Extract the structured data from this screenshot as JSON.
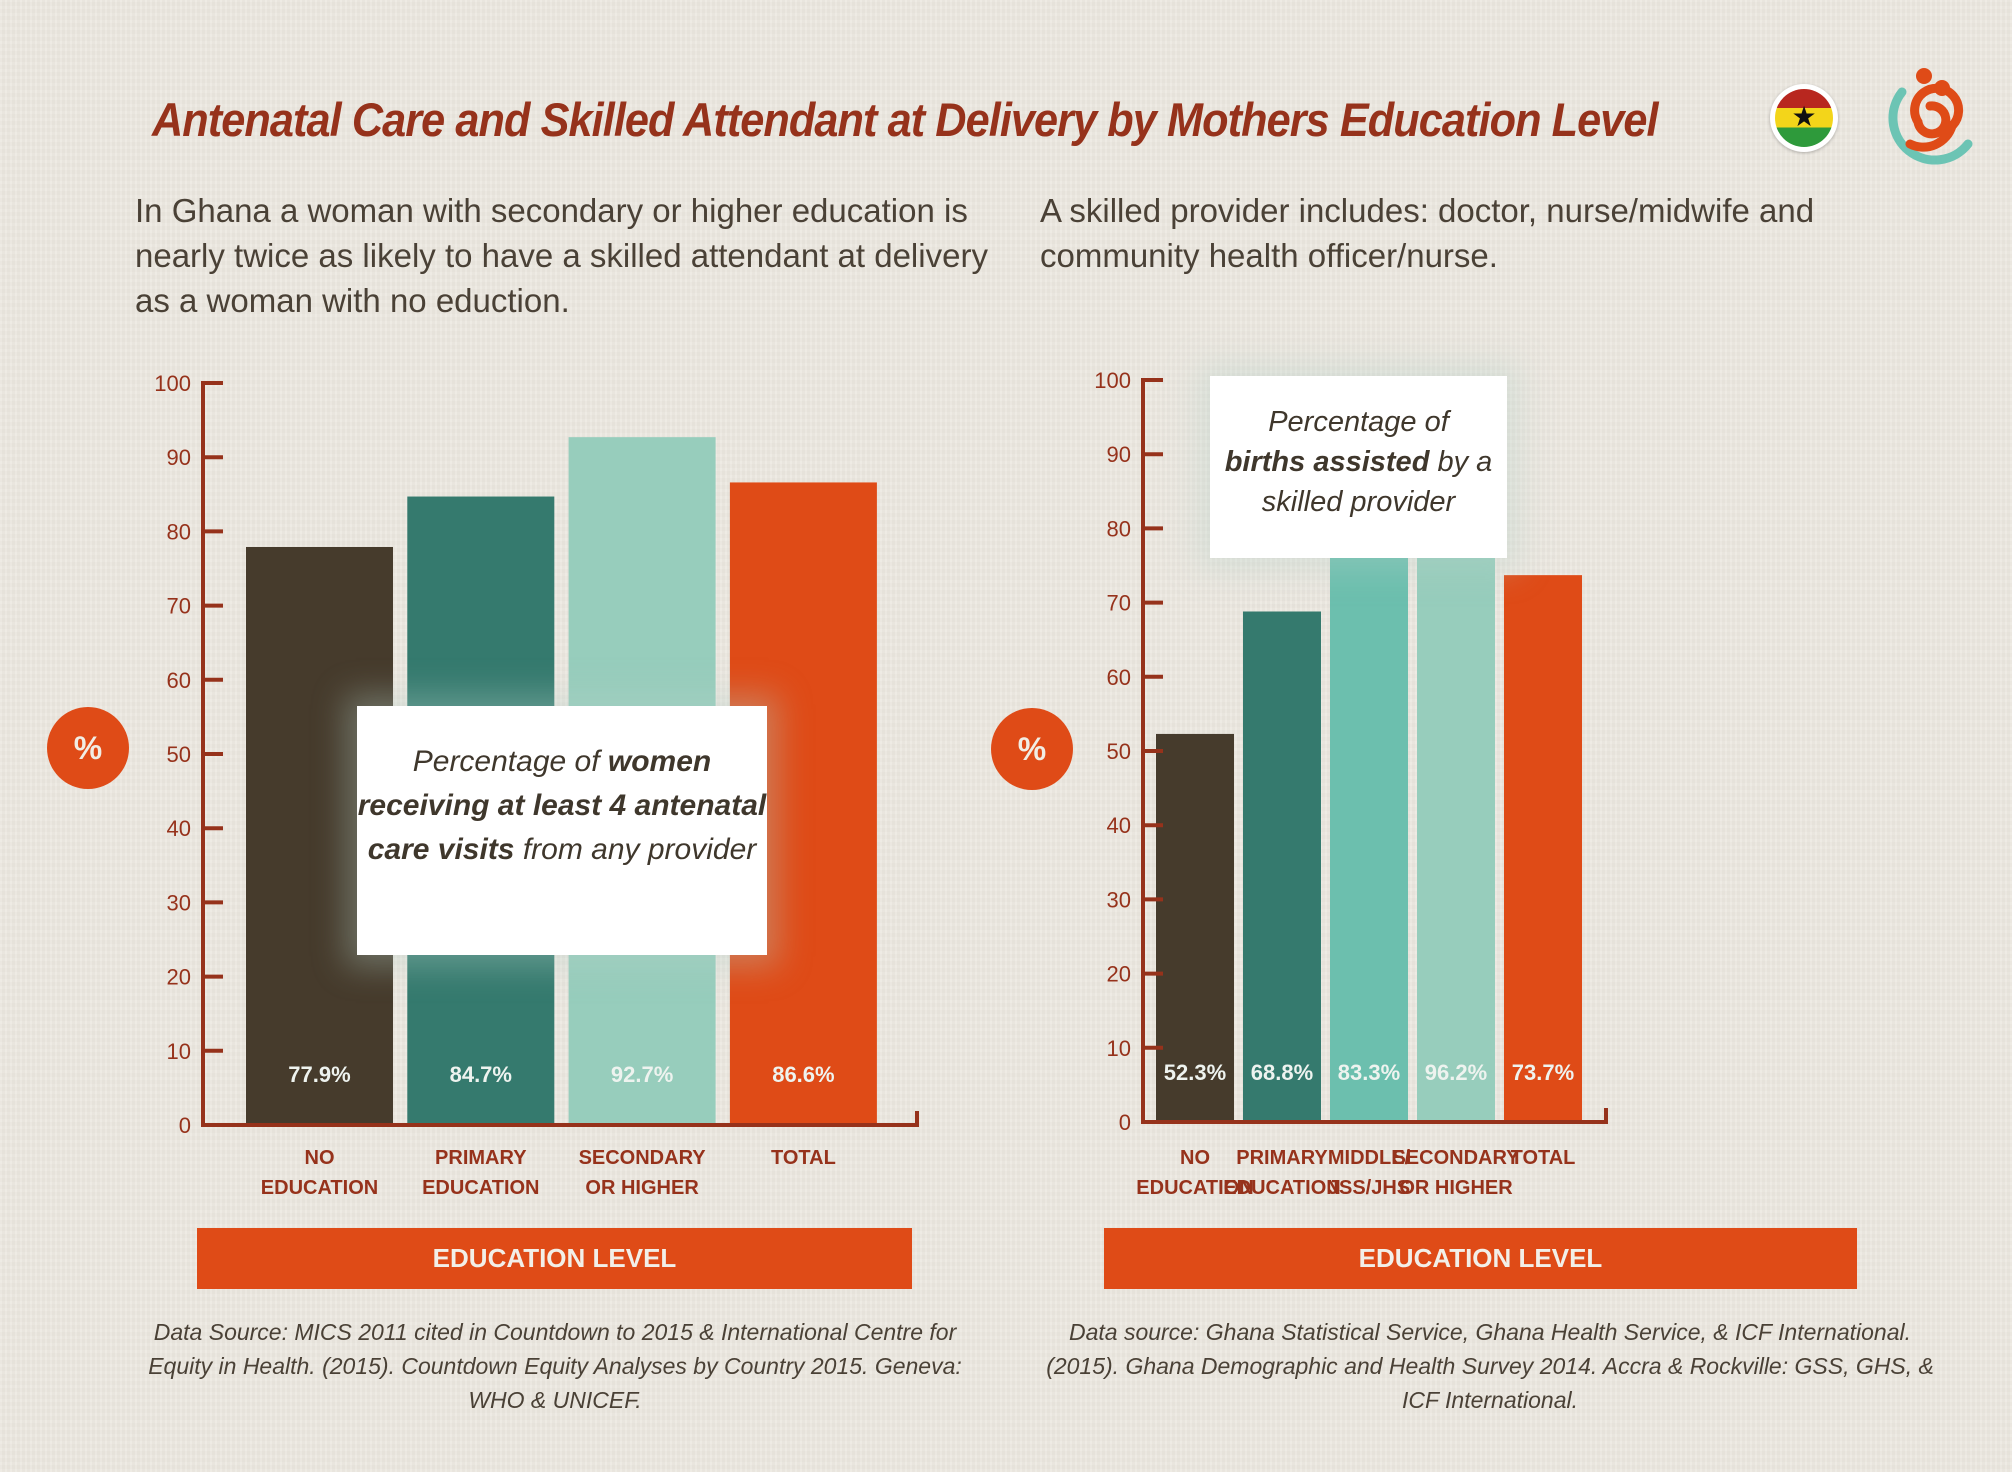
{
  "title": "Antenatal Care and Skilled Attendant at Delivery by Mothers Education Level",
  "intro_left": "In Ghana a woman with secondary or higher education is nearly twice as likely to have a skilled attendant at delivery as a woman with no eduction.",
  "intro_right": "A skilled provider includes: doctor, nurse/midwife and community health officer/nurse.",
  "icons": {
    "flag": "ghana-flag-icon",
    "logo": "spiral-mother-child-logo-icon",
    "flag_star": "★"
  },
  "y_unit_symbol": "%",
  "colors": {
    "no_education": "#463b2c",
    "primary": "#357a6e",
    "middle": "#6cbfae",
    "secondary": "#97cdbc",
    "total": "#df4b17",
    "axis": "#96321b"
  },
  "callout_left": {
    "pre": "Percentage of ",
    "bold1": "women receiving at least 4 antenatal care visits",
    "post": " from any provider"
  },
  "callout_right": {
    "pre": "Percentage of ",
    "bold1": "births assisted",
    "post": " by a skilled provider"
  },
  "band_label_left": "EDUCATION LEVEL",
  "band_label_right": "EDUCATION LEVEL",
  "source_left": "Data Source: MICS 2011 cited in Countdown to 2015 & International Centre for Equity in Health. (2015). Countdown Equity Analyses by Country 2015. Geneva: WHO & UNICEF.",
  "source_right": "Data source: Ghana Statistical Service, Ghana Health Service, & ICF International. (2015). Ghana Demographic and Health Survey 2014. Accra & Rockville: GSS, GHS, & ICF International.",
  "chart_data": [
    {
      "type": "bar",
      "title": "Percentage of women receiving at least 4 antenatal care visits from any provider",
      "xlabel": "EDUCATION LEVEL",
      "ylabel": "%",
      "ylim": [
        0,
        100
      ],
      "yticks": [
        0,
        10,
        20,
        30,
        40,
        50,
        60,
        70,
        80,
        90,
        100
      ],
      "grid": false,
      "categories": [
        [
          "NO",
          "EDUCATION"
        ],
        [
          "PRIMARY",
          "EDUCATION"
        ],
        [
          "SECONDARY",
          "OR HIGHER"
        ],
        [
          "TOTAL"
        ]
      ],
      "values": [
        77.9,
        84.7,
        92.7,
        86.6
      ],
      "value_labels": [
        "77.9%",
        "84.7%",
        "92.7%",
        "86.6%"
      ],
      "bar_colors": [
        "#463b2c",
        "#357a6e",
        "#97cdbc",
        "#df4b17"
      ]
    },
    {
      "type": "bar",
      "title": "Percentage of births assisted by a skilled provider",
      "xlabel": "EDUCATION LEVEL",
      "ylabel": "%",
      "ylim": [
        0,
        100
      ],
      "yticks": [
        0,
        10,
        20,
        30,
        40,
        50,
        60,
        70,
        80,
        90,
        100
      ],
      "grid": false,
      "categories": [
        [
          "NO",
          "EDUCATION"
        ],
        [
          "PRIMARY",
          "EDUCATION"
        ],
        [
          "MIDDLE/",
          "JSS/JHS"
        ],
        [
          "SECONDARY",
          "OR HIGHER"
        ],
        [
          "TOTAL"
        ]
      ],
      "values": [
        52.3,
        68.8,
        83.3,
        96.2,
        73.7
      ],
      "value_labels": [
        "52.3%",
        "68.8%",
        "83.3%",
        "96.2%",
        "73.7%"
      ],
      "bar_colors": [
        "#463b2c",
        "#357a6e",
        "#6cbfae",
        "#97cdbc",
        "#df4b17"
      ]
    }
  ]
}
